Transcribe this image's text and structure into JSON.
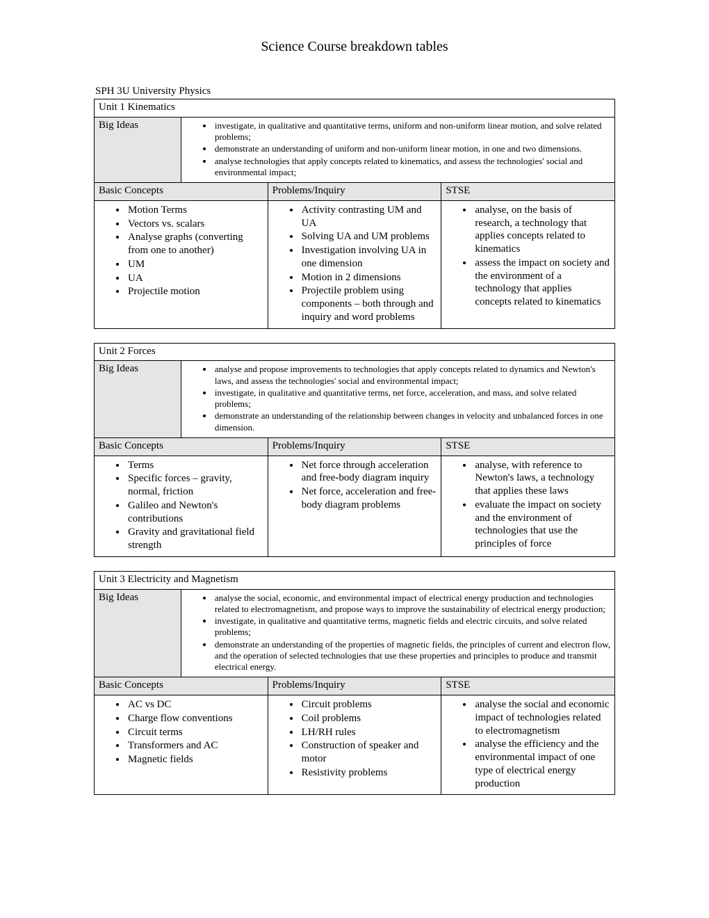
{
  "doc_title": "Science Course breakdown tables",
  "course_label": "SPH 3U  University Physics",
  "labels": {
    "big_ideas": "Big Ideas",
    "basic_concepts": "Basic Concepts",
    "problems": "Problems/Inquiry",
    "stse": "STSE"
  },
  "units": [
    {
      "title": "Unit 1 Kinematics",
      "ideas_col_width": 130,
      "big_ideas": [
        "investigate, in qualitative and quantitative terms, uniform and non-uniform linear motion, and solve related problems;",
        "demonstrate an understanding of uniform and non-uniform linear motion, in one and two dimensions.",
        "analyse technologies that apply concepts related to kinematics, and assess the technologies' social and environmental impact;"
      ],
      "basic_concepts": [
        "Motion Terms",
        "Vectors vs. scalars",
        "Analyse graphs (converting from one to another)",
        "UM",
        "UA",
        "Projectile motion"
      ],
      "problems": [
        "Activity contrasting UM and UA",
        "Solving UA and UM problems",
        "Investigation involving UA in one dimension",
        "Motion in 2 dimensions",
        "Projectile problem using components – both through and inquiry and word problems"
      ],
      "stse": [
        "analyse, on the basis of research, a technology that applies concepts related to kinematics",
        "assess the impact on society and the environment of a technology that applies concepts related to kinematics"
      ]
    },
    {
      "title": "Unit 2 Forces",
      "ideas_col_width": 90,
      "big_ideas": [
        "analyse and propose improvements to technologies that apply concepts related to dynamics and Newton's laws, and assess the technologies' social and environmental impact;",
        "investigate, in qualitative and quantitative terms, net force, acceleration, and mass, and solve related problems;",
        "demonstrate an understanding of the relationship between changes in velocity and unbalanced forces in one dimension."
      ],
      "basic_concepts": [
        "Terms",
        "Specific forces – gravity, normal, friction",
        "Galileo and Newton's contributions",
        "Gravity and gravitational field strength"
      ],
      "problems": [
        "Net force through acceleration and free-body diagram inquiry",
        "Net force, acceleration and free-body diagram problems"
      ],
      "stse": [
        "analyse, with reference to Newton's laws, a technology that applies these laws",
        "evaluate the impact on society and the environment of technologies that use the principles of force"
      ]
    },
    {
      "title": "Unit 3 Electricity and Magnetism",
      "ideas_col_width": 120,
      "big_ideas": [
        "analyse the social, economic, and environmental impact of electrical energy production and technologies related to electromagnetism, and propose ways to improve the sustainability of electrical energy production;",
        "investigate, in qualitative and quantitative terms, magnetic fields and electric circuits, and solve related problems;",
        "demonstrate an understanding of the properties of magnetic fields, the principles of current and electron flow, and the operation of selected technologies that use these properties and principles to produce and transmit electrical energy."
      ],
      "basic_concepts": [
        "AC vs DC",
        "Charge flow conventions",
        "Circuit terms",
        "Transformers and AC",
        "Magnetic fields"
      ],
      "problems": [
        "Circuit problems",
        "Coil problems",
        "LH/RH rules",
        "Construction of speaker and motor",
        "Resistivity problems"
      ],
      "stse": [
        "analyse the social and economic impact of technologies related to electromagnetism",
        "analyse the efficiency and the environmental impact of one type of electrical energy production"
      ]
    }
  ]
}
